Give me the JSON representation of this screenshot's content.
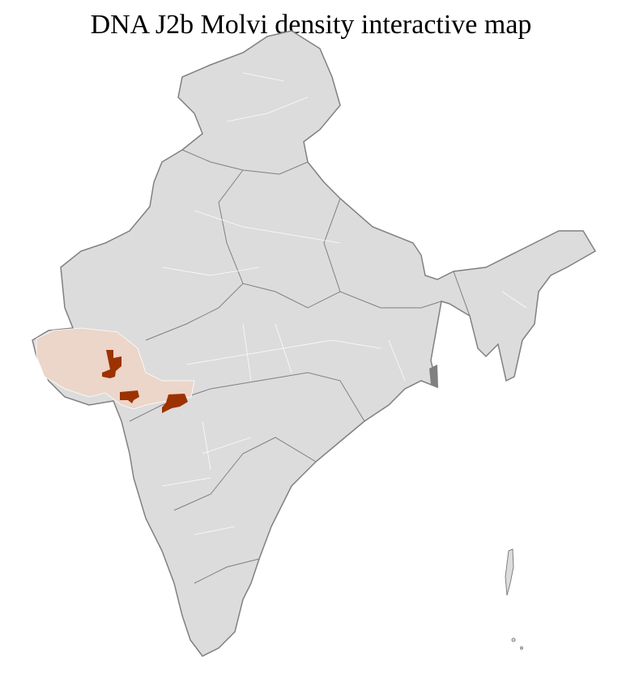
{
  "title": "DNA J2b Molvi density interactive map",
  "colors": {
    "base": "#dcdcdc",
    "border": "#808080",
    "district_lines": "#ffffff",
    "low_density": "#ecd5c9",
    "high_density": "#9c3200"
  },
  "highlighted_regions": [
    {
      "level": "low",
      "area": "Gujarat"
    },
    {
      "level": "low",
      "area": "north-west Maharashtra"
    },
    {
      "level": "high",
      "area": "central Gujarat district"
    },
    {
      "level": "high",
      "area": "south Gujarat district"
    },
    {
      "level": "high",
      "area": "north Maharashtra district"
    }
  ]
}
